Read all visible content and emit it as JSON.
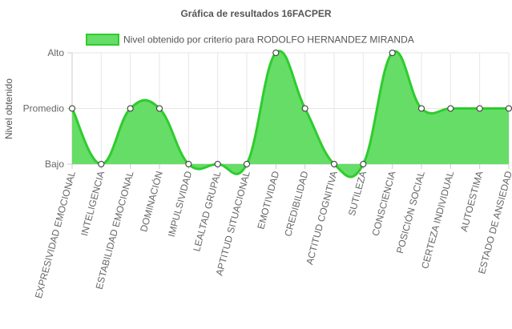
{
  "chart_data": {
    "type": "line",
    "title": "Gráfica de resultados 16FACPER",
    "xlabel": "",
    "ylabel": "Nivel obtenido",
    "y_levels": [
      "Bajo",
      "Promedio",
      "Alto"
    ],
    "categories": [
      "EXPRESIVIDAD EMOCIONAL",
      "INTELIGENCIA",
      "ESTABILIDAD EMOCIONAL",
      "DOMINACIÓN",
      "IMPULSIVIDAD",
      "LEALTAD GRUPAL",
      "APTITUD SITUACIONAL",
      "EMOTIVIDAD",
      "CREDIBILIDAD",
      "ACTITUD COGNITIVA",
      "SUTILEZA",
      "CONSCIENCIA",
      "POSICIÓN SOCIAL",
      "CERTEZA INDIVIDUAL",
      "AUTOESTIMA",
      "ESTADO DE ANSIEDAD"
    ],
    "series": [
      {
        "name": "Nivel obtenido por criterio para RODOLFO HERNANDEZ MIRANDA",
        "values": [
          "Promedio",
          "Bajo",
          "Promedio",
          "Promedio",
          "Bajo",
          "Bajo",
          "Bajo",
          "Alto",
          "Promedio",
          "Bajo",
          "Bajo",
          "Alto",
          "Promedio",
          "Promedio",
          "Promedio",
          "Promedio"
        ],
        "color": "#2ecc2e",
        "fill_color": "#66dd66"
      }
    ],
    "legend_position": "top",
    "grid": true
  }
}
